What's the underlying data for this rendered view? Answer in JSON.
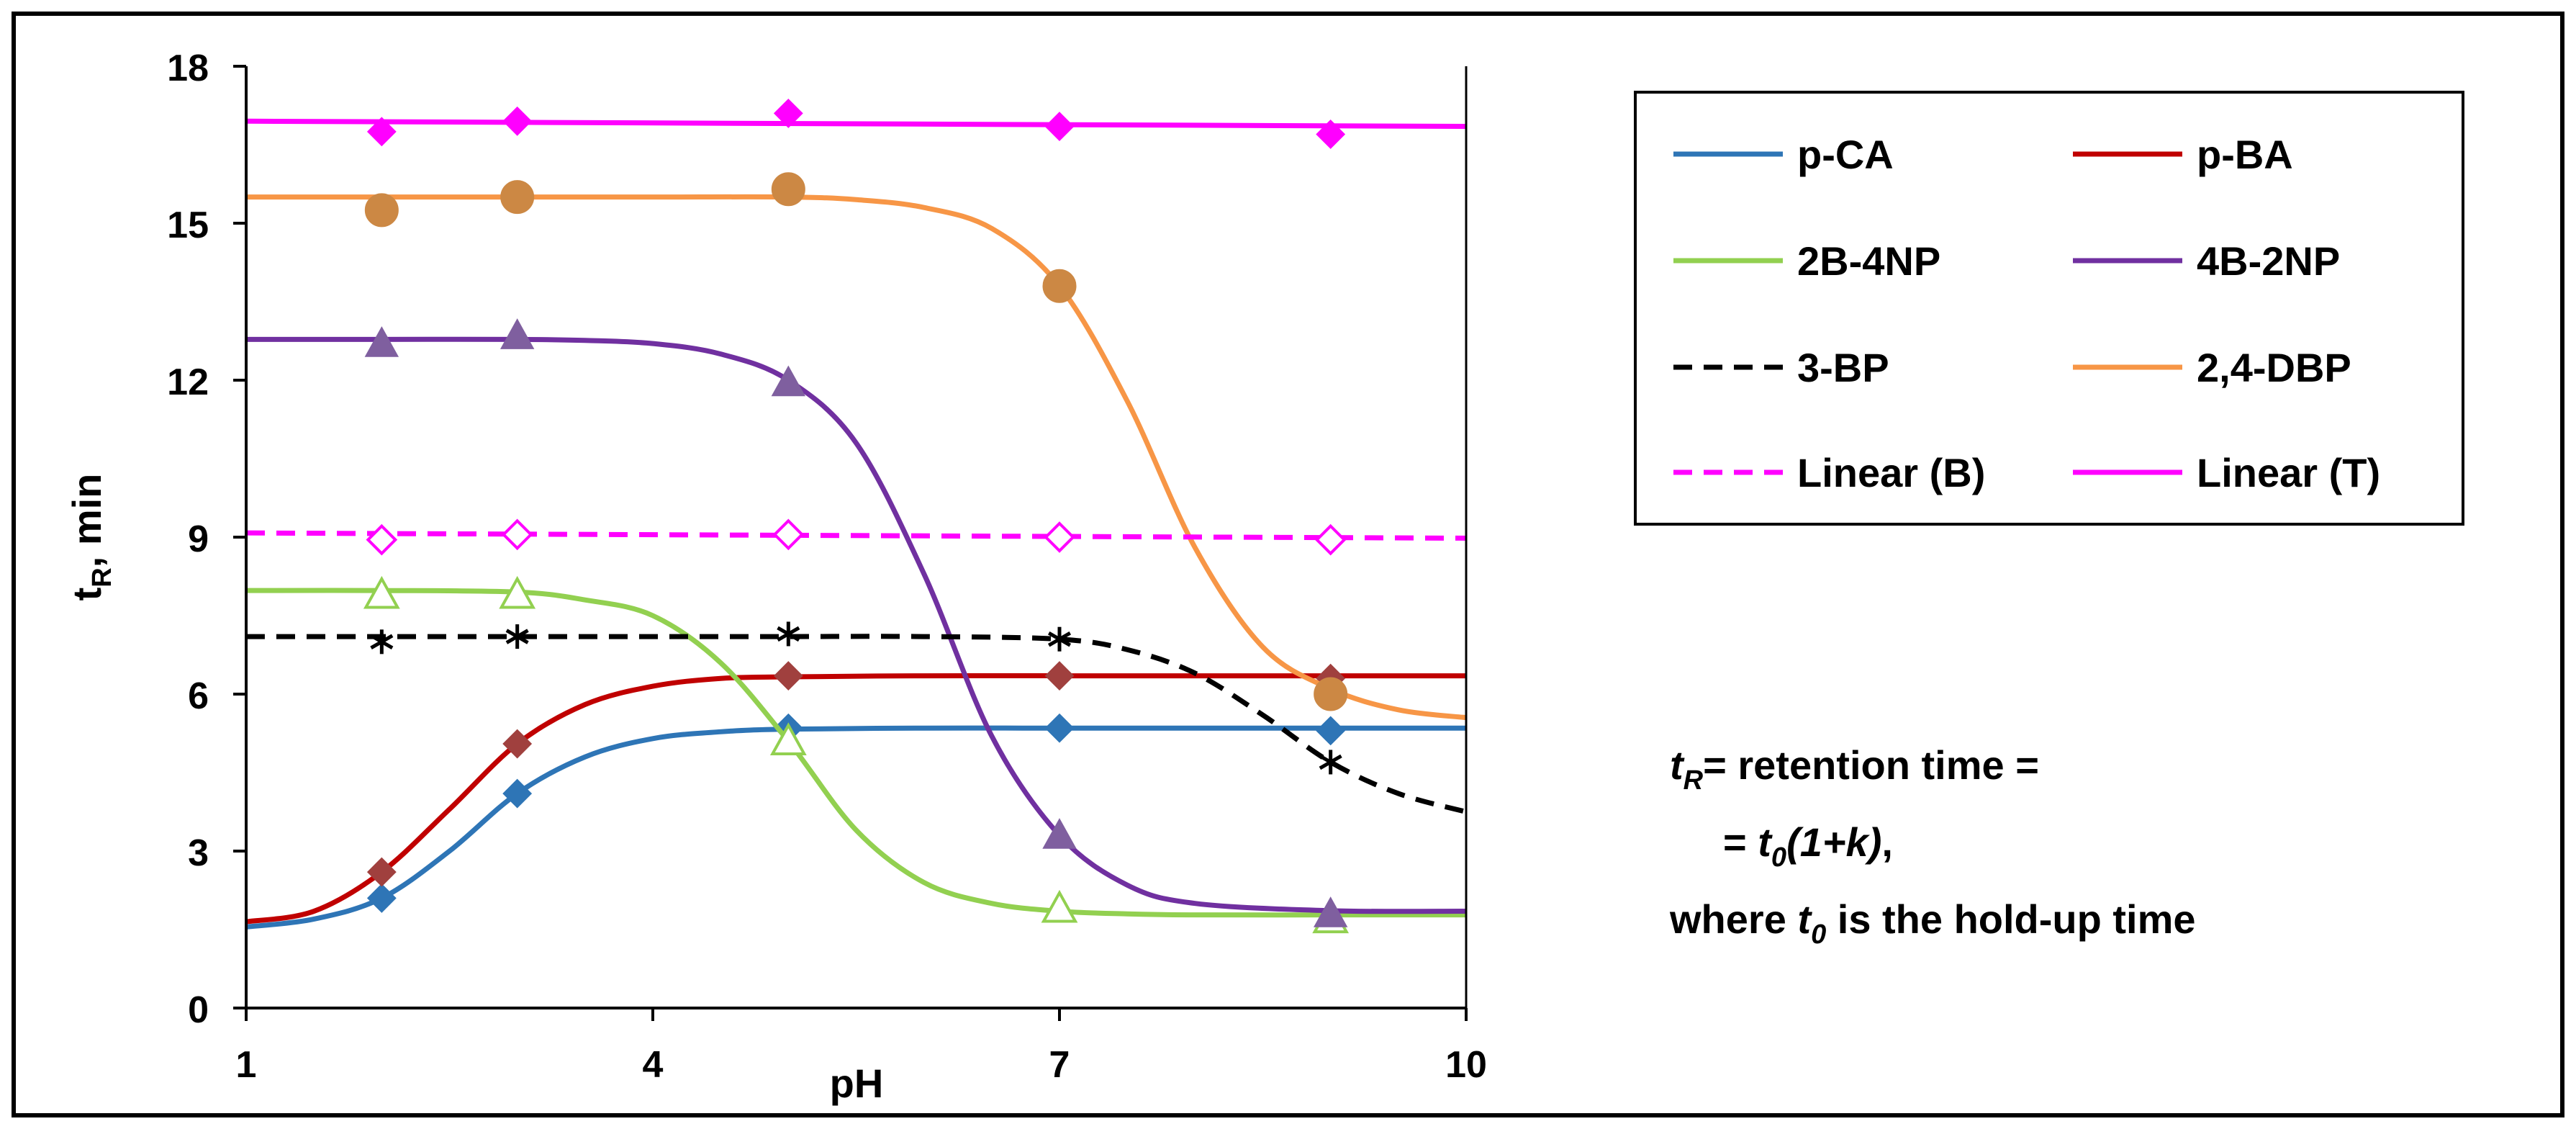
{
  "chart_data": {
    "type": "line",
    "title": "",
    "xlabel": "pH",
    "ylabel": "t",
    "ylabel_sub": "R",
    "ylabel_suffix": ", min",
    "xlim": [
      1,
      10
    ],
    "ylim": [
      0,
      18
    ],
    "x_ticks": [
      1,
      4,
      7,
      10
    ],
    "y_ticks": [
      0,
      3,
      6,
      9,
      12,
      15,
      18
    ],
    "legend_position": "top-right",
    "series": [
      {
        "name": "p-CA",
        "color": "#2E75B6",
        "dash": false,
        "marker": "diamond",
        "marker_fill": "#2E75B6",
        "points_x": [
          2,
          3,
          5,
          7,
          9
        ],
        "points_y": [
          2.1,
          4.1,
          5.35,
          5.35,
          5.3
        ],
        "curve_x": [
          1,
          1.5,
          2,
          2.5,
          3,
          3.5,
          4,
          4.5,
          5,
          6,
          7,
          8,
          9,
          10
        ],
        "curve_y": [
          1.55,
          1.7,
          2.1,
          3.0,
          4.1,
          4.8,
          5.15,
          5.28,
          5.33,
          5.35,
          5.35,
          5.35,
          5.35,
          5.35
        ]
      },
      {
        "name": "p-BA",
        "color": "#C00000",
        "dash": false,
        "marker": "diamond",
        "marker_fill": "#A0403E",
        "points_x": [
          2,
          3,
          5,
          7,
          9
        ],
        "points_y": [
          2.6,
          5.05,
          6.35,
          6.35,
          6.3
        ],
        "curve_x": [
          1,
          1.5,
          2,
          2.5,
          3,
          3.5,
          4,
          4.5,
          5,
          6,
          7,
          8,
          9,
          10
        ],
        "curve_y": [
          1.65,
          1.85,
          2.6,
          3.8,
          5.05,
          5.8,
          6.15,
          6.3,
          6.33,
          6.35,
          6.35,
          6.35,
          6.35,
          6.35
        ]
      },
      {
        "name": "2B-4NP",
        "color": "#92D050",
        "dash": false,
        "marker": "triangle-open",
        "marker_fill": "#92D050",
        "points_x": [
          2,
          3,
          5,
          7,
          9
        ],
        "points_y": [
          7.9,
          7.9,
          5.1,
          1.9,
          1.7
        ],
        "curve_x": [
          1,
          2,
          3,
          3.5,
          4,
          4.5,
          5,
          5.5,
          6,
          6.5,
          7,
          7.5,
          8,
          9,
          10
        ],
        "curve_y": [
          7.98,
          7.98,
          7.95,
          7.8,
          7.5,
          6.6,
          5.1,
          3.4,
          2.4,
          2.0,
          1.85,
          1.8,
          1.78,
          1.78,
          1.78
        ]
      },
      {
        "name": "4B-2NP",
        "color": "#7030A0",
        "dash": false,
        "marker": "triangle",
        "marker_fill": "#7F5F9F",
        "points_x": [
          2,
          3,
          5,
          7,
          9
        ],
        "points_y": [
          12.7,
          12.85,
          11.95,
          3.3,
          1.8
        ],
        "curve_x": [
          1,
          2,
          3,
          3.5,
          4,
          4.5,
          5,
          5.5,
          6,
          6.5,
          7,
          7.5,
          8,
          9,
          10
        ],
        "curve_y": [
          12.78,
          12.78,
          12.78,
          12.76,
          12.7,
          12.5,
          12.0,
          10.8,
          8.3,
          5.2,
          3.3,
          2.35,
          2.0,
          1.86,
          1.85
        ]
      },
      {
        "name": "3-BP",
        "color": "#000000",
        "dash": true,
        "marker": "star",
        "marker_fill": "#000000",
        "points_x": [
          2,
          3,
          5,
          7,
          9
        ],
        "points_y": [
          7.0,
          7.1,
          7.15,
          7.05,
          4.7
        ],
        "curve_x": [
          1,
          2,
          3,
          4,
          5,
          6,
          7,
          7.5,
          8,
          8.5,
          9,
          9.5,
          10
        ],
        "curve_y": [
          7.1,
          7.1,
          7.1,
          7.1,
          7.1,
          7.1,
          7.05,
          6.85,
          6.4,
          5.6,
          4.7,
          4.1,
          3.75
        ]
      },
      {
        "name": "2,4-DBP",
        "color": "#F79646",
        "dash": false,
        "marker": "circle",
        "marker_fill": "#CC8844",
        "points_x": [
          2,
          3,
          5,
          7,
          9
        ],
        "points_y": [
          15.25,
          15.5,
          15.65,
          13.8,
          6.0
        ],
        "curve_x": [
          1,
          2,
          3,
          4,
          5,
          5.5,
          6,
          6.5,
          7,
          7.5,
          8,
          8.5,
          9,
          9.5,
          10
        ],
        "curve_y": [
          15.5,
          15.5,
          15.5,
          15.5,
          15.5,
          15.45,
          15.3,
          14.9,
          13.8,
          11.6,
          8.8,
          6.9,
          6.1,
          5.7,
          5.55
        ]
      },
      {
        "name": "Linear (B)",
        "color": "#FF00FF",
        "dash": true,
        "marker": "diamond-open",
        "marker_fill": "#FF00FF",
        "points_x": [
          2,
          3,
          5,
          7,
          9
        ],
        "points_y": [
          8.95,
          9.05,
          9.05,
          9.0,
          8.95
        ],
        "curve_x": [
          1,
          10
        ],
        "curve_y": [
          9.08,
          8.98
        ]
      },
      {
        "name": "Linear (T)",
        "color": "#FF00FF",
        "dash": false,
        "marker": "diamond",
        "marker_fill": "#FF00FF",
        "points_x": [
          2,
          3,
          5,
          7,
          9
        ],
        "points_y": [
          16.75,
          16.95,
          17.1,
          16.85,
          16.7
        ],
        "curve_x": [
          1,
          10
        ],
        "curve_y": [
          16.95,
          16.85
        ]
      }
    ]
  },
  "note": {
    "line1_var": "t",
    "line1_sub": "R",
    "line1_text": "= retention time =",
    "line2_prefix": "= ",
    "line2_var": "t",
    "line2_sub": "0",
    "line2_formula": "(1+k)",
    "line2_end": ",",
    "line3_text": "where ",
    "line3_var": "t",
    "line3_sub": "0",
    "line3_rest": " is the hold-up time"
  }
}
